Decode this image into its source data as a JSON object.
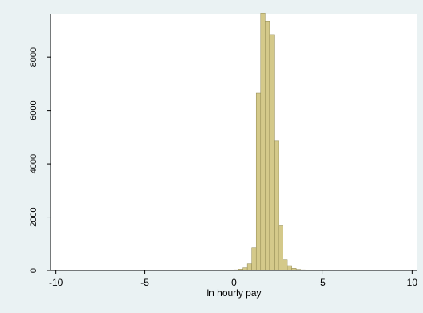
{
  "chart_data": {
    "type": "bar",
    "title": "",
    "xlabel": "ln hourly pay",
    "ylabel": "",
    "xlim": [
      -10.3,
      10.3
    ],
    "ylim": [
      0,
      9600
    ],
    "xticks": [
      -10,
      -5,
      0,
      5,
      10
    ],
    "xtick_labels": [
      "-10",
      "-5",
      "0",
      "5",
      "10"
    ],
    "yticks": [
      0,
      2000,
      4000,
      6000,
      8000
    ],
    "ytick_labels": [
      "0",
      "2000",
      "4000",
      "6000",
      "8000"
    ],
    "grid": false,
    "bin_width": 0.25,
    "bins": [
      {
        "x0": -7.75,
        "x1": -7.5,
        "value": 15
      },
      {
        "x0": -5.25,
        "x1": -5.0,
        "value": 10
      },
      {
        "x0": -4.5,
        "x1": -4.25,
        "value": 10
      },
      {
        "x0": -3.75,
        "x1": -3.5,
        "value": 10
      },
      {
        "x0": -3.0,
        "x1": -2.75,
        "value": 10
      },
      {
        "x0": -2.25,
        "x1": -2.0,
        "value": 10
      },
      {
        "x0": -1.5,
        "x1": -1.25,
        "value": 10
      },
      {
        "x0": -0.5,
        "x1": -0.25,
        "value": 15
      },
      {
        "x0": 0.0,
        "x1": 0.25,
        "value": 25
      },
      {
        "x0": 0.25,
        "x1": 0.5,
        "value": 50
      },
      {
        "x0": 0.5,
        "x1": 0.75,
        "value": 100
      },
      {
        "x0": 0.75,
        "x1": 1.0,
        "value": 250
      },
      {
        "x0": 1.0,
        "x1": 1.25,
        "value": 850
      },
      {
        "x0": 1.25,
        "x1": 1.5,
        "value": 6650
      },
      {
        "x0": 1.5,
        "x1": 1.75,
        "value": 9650
      },
      {
        "x0": 1.75,
        "x1": 2.0,
        "value": 9350
      },
      {
        "x0": 2.0,
        "x1": 2.25,
        "value": 8850
      },
      {
        "x0": 2.25,
        "x1": 2.5,
        "value": 4850
      },
      {
        "x0": 2.5,
        "x1": 2.75,
        "value": 1700
      },
      {
        "x0": 2.75,
        "x1": 3.0,
        "value": 400
      },
      {
        "x0": 3.0,
        "x1": 3.25,
        "value": 180
      },
      {
        "x0": 3.25,
        "x1": 3.5,
        "value": 80
      },
      {
        "x0": 3.5,
        "x1": 3.75,
        "value": 40
      },
      {
        "x0": 3.75,
        "x1": 4.0,
        "value": 25
      },
      {
        "x0": 4.0,
        "x1": 4.25,
        "value": 20
      },
      {
        "x0": 4.25,
        "x1": 4.5,
        "value": 15
      },
      {
        "x0": 4.5,
        "x1": 4.75,
        "value": 15
      },
      {
        "x0": 4.75,
        "x1": 5.0,
        "value": 15
      },
      {
        "x0": 5.0,
        "x1": 5.25,
        "value": 10
      },
      {
        "x0": 5.25,
        "x1": 5.5,
        "value": 10
      },
      {
        "x0": 5.5,
        "x1": 5.75,
        "value": 10
      },
      {
        "x0": 5.75,
        "x1": 6.0,
        "value": 10
      },
      {
        "x0": 6.0,
        "x1": 6.25,
        "value": 8
      }
    ],
    "colors": {
      "background": "#eaf2f3",
      "plot_background": "#ffffff",
      "bar_fill": "#d4c98a",
      "bar_stroke": "#8f874f",
      "axis": "#000000",
      "text": "#000000"
    }
  }
}
